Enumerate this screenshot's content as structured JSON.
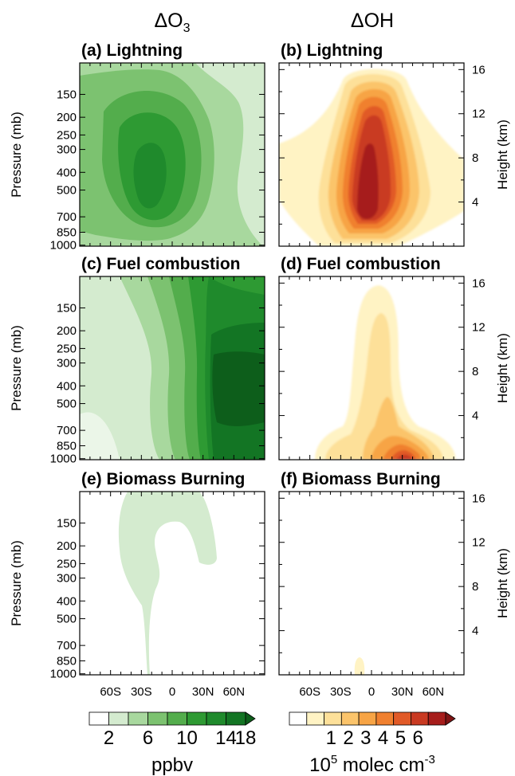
{
  "figure": {
    "col_titles": [
      {
        "delta": "Δ",
        "main": "O",
        "sub": "3"
      },
      {
        "delta": "Δ",
        "main": "OH",
        "sub": ""
      }
    ]
  },
  "panel_style": {
    "o3_colors": [
      "#ffffff",
      "#d4ebcf",
      "#a8d89e",
      "#7cc270",
      "#53ad4c",
      "#2e9a33",
      "#1f8a2c",
      "#137524"
    ],
    "oh_colors": [
      "#ffffff",
      "#fff3c4",
      "#fde099",
      "#fbc46b",
      "#f7a445",
      "#f0802f",
      "#e15a27",
      "#c93a22",
      "#a61d1b"
    ]
  },
  "colorbars": [
    {
      "name": "o3-colorbar",
      "colors": [
        "#ffffff",
        "#d4ebcf",
        "#a8d89e",
        "#7cc270",
        "#53ad4c",
        "#2e9a33",
        "#1f8a2c",
        "#137524",
        "#0d5e1b"
      ],
      "ticks": [
        "2",
        "6",
        "10",
        "14",
        "18"
      ],
      "label": "ppbv"
    },
    {
      "name": "oh-colorbar",
      "colors": [
        "#ffffff",
        "#fff3c4",
        "#fde099",
        "#fbc46b",
        "#f7a445",
        "#f0802f",
        "#e15a27",
        "#c93a22",
        "#a61d1b",
        "#7e1414"
      ],
      "ticks": [
        "1",
        "2",
        "3",
        "4",
        "5",
        "6"
      ],
      "label_base": "10",
      "label_exp": "5",
      "label_rest": "molec cm",
      "label_exp2": "-3"
    }
  ],
  "chart_data": [
    {
      "type": "heatmap",
      "title": "(a) Lightning",
      "species": "O3",
      "units": "ppbv",
      "ylabel": "Pressure (mb)",
      "pressure_ticks": [
        150,
        200,
        250,
        300,
        400,
        500,
        700,
        850,
        1000
      ],
      "height_ticks_km": [
        4,
        8,
        12,
        16
      ],
      "x_ticks": [
        "60S",
        "30S",
        "0",
        "30N",
        "60N"
      ],
      "levels": [
        2,
        4,
        6,
        8,
        10,
        12
      ],
      "peak_value": 13,
      "peak_lat": -12,
      "peak_height_km": 8
    },
    {
      "type": "heatmap",
      "title": "(b) Lightning",
      "species": "OH",
      "units": "10^5 molec cm^-3",
      "ylabel2": "Height (km)",
      "height_ticks_km": [
        4,
        8,
        12,
        16
      ],
      "x_ticks": [
        "60S",
        "30S",
        "0",
        "30N",
        "60N"
      ],
      "levels": [
        0.5,
        1,
        1.5,
        2,
        2.5,
        3,
        3.5,
        4
      ],
      "peak_value": 4.6,
      "peak_lat": -5,
      "peak_height_km": 3
    },
    {
      "type": "heatmap",
      "title": "(c) Fuel combustion",
      "species": "O3",
      "units": "ppbv",
      "ylabel": "Pressure (mb)",
      "pressure_ticks": [
        150,
        200,
        250,
        300,
        400,
        500,
        700,
        850,
        1000
      ],
      "x_ticks": [
        "60S",
        "30S",
        "0",
        "30N",
        "60N"
      ],
      "levels": [
        2,
        4,
        6,
        8,
        10,
        12,
        14
      ],
      "peak_value": 17,
      "peak_lat": 55,
      "peak_height_km": 7
    },
    {
      "type": "heatmap",
      "title": "(d) Fuel combustion",
      "species": "OH",
      "units": "10^5 molec cm^-3",
      "ylabel2": "Height (km)",
      "height_ticks_km": [
        4,
        8,
        12,
        16
      ],
      "x_ticks": [
        "60S",
        "30S",
        "0",
        "30N",
        "60N"
      ],
      "levels": [
        0.5,
        1,
        1.5,
        2,
        2.5,
        3,
        3.5,
        4
      ],
      "peak_value": 4.5,
      "peak_lat": 30,
      "peak_height_km": 0.5
    },
    {
      "type": "heatmap",
      "title": "(e) Biomass Burning",
      "species": "O3",
      "units": "ppbv",
      "ylabel": "Pressure (mb)",
      "pressure_ticks": [
        150,
        200,
        250,
        300,
        400,
        500,
        700,
        850,
        1000
      ],
      "x_ticks": [
        "60S",
        "30S",
        "0",
        "30N",
        "60N"
      ],
      "levels": [
        2
      ],
      "peak_value": 3,
      "peak_lat": -15,
      "peak_height_km": 8
    },
    {
      "type": "heatmap",
      "title": "(f) Biomass Burning",
      "species": "OH",
      "units": "10^5 molec cm^-3",
      "ylabel2": "Height (km)",
      "height_ticks_km": [
        4,
        8,
        12,
        16
      ],
      "x_ticks": [
        "60S",
        "30S",
        "0",
        "30N",
        "60N"
      ],
      "levels": [
        0.5
      ],
      "peak_value": 0.6,
      "peak_lat": -8,
      "peak_height_km": 0.8
    }
  ]
}
